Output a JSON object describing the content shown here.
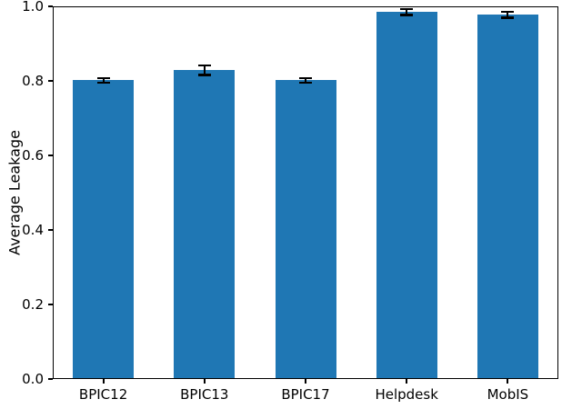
{
  "figure": {
    "title": ""
  },
  "chart_data": {
    "type": "bar",
    "categories": [
      "BPIC12",
      "BPIC13",
      "BPIC17",
      "Helpdesk",
      "MobIS"
    ],
    "values": [
      0.802,
      0.829,
      0.802,
      0.985,
      0.978
    ],
    "errors": [
      0.006,
      0.013,
      0.006,
      0.008,
      0.008
    ],
    "title": "",
    "xlabel": "",
    "ylabel": "Average Leakage",
    "ylim": [
      0.0,
      1.0
    ],
    "yticks": [
      "0.0",
      "0.2",
      "0.4",
      "0.6",
      "0.8",
      "1.0"
    ],
    "ytick_values": [
      0.0,
      0.2,
      0.4,
      0.6,
      0.8,
      1.0
    ],
    "bar_color": "#1f77b4",
    "error_color": "#000000",
    "grid": false,
    "legend": null
  }
}
